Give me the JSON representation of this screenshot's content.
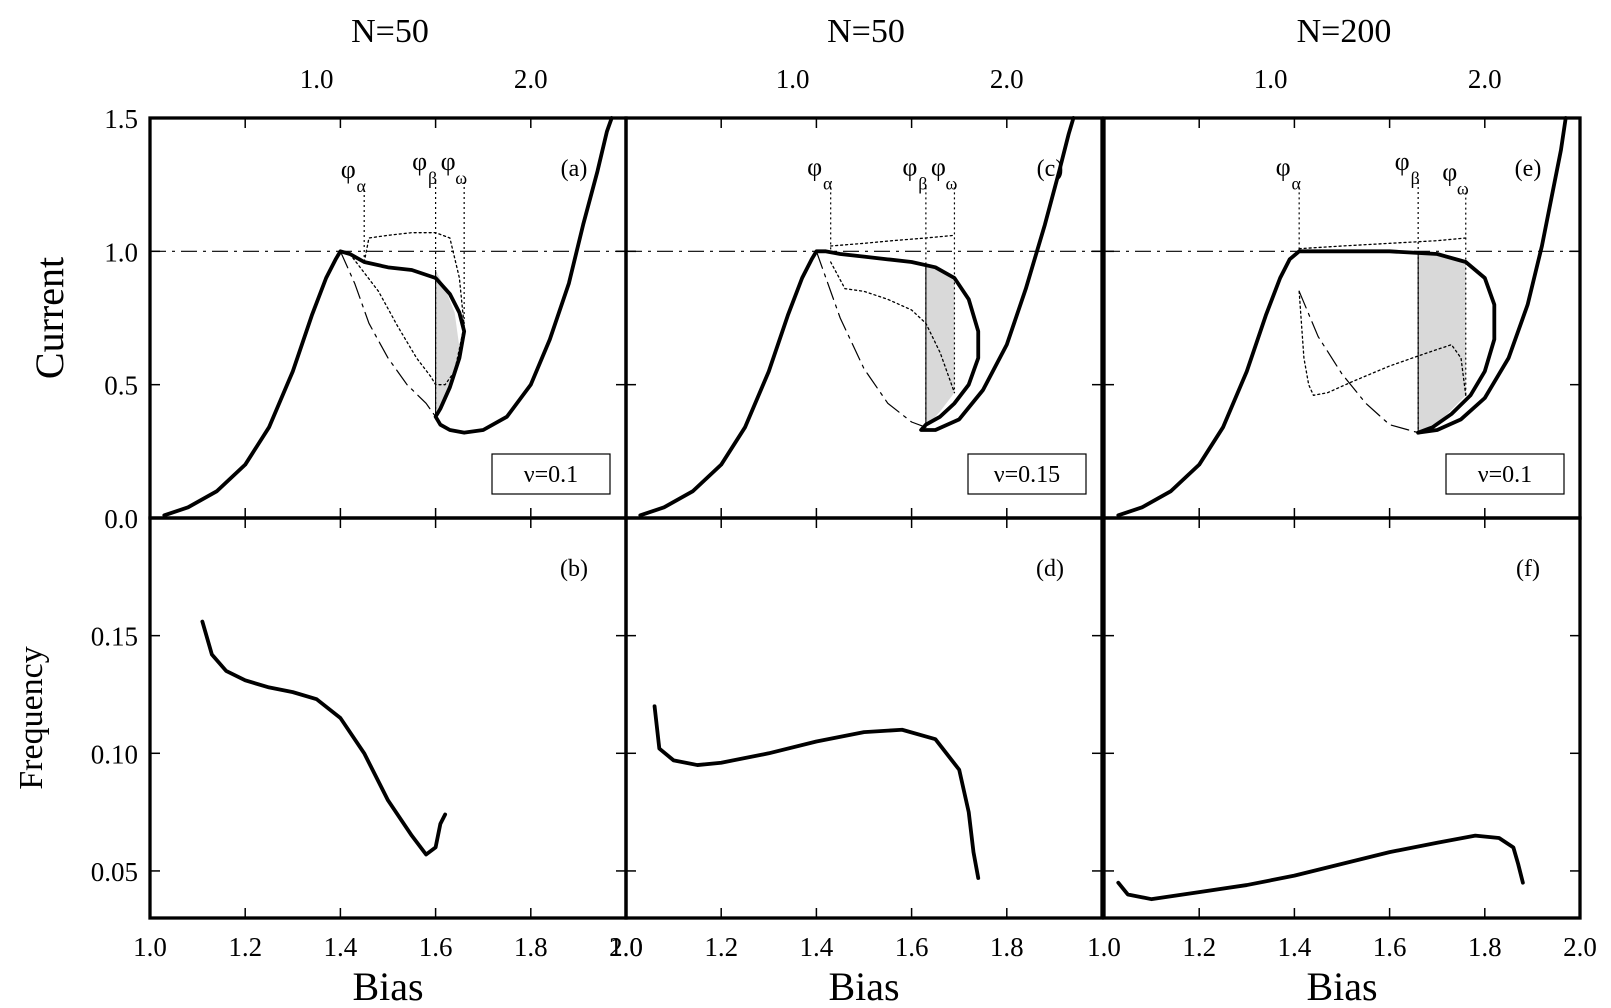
{
  "figure": {
    "top_titles": [
      "N=50",
      "N=50",
      "N=200"
    ],
    "top_tick_labels": [
      "1.0",
      "2.0"
    ]
  },
  "chart_data": [
    {
      "panel": "(a)",
      "type": "line",
      "N": "N=50",
      "label": "(a)",
      "nu_label": "ν=0.1",
      "ylabel": "Current",
      "xlim": [
        1.0,
        2.0
      ],
      "ylim": [
        0.0,
        1.5
      ],
      "xticks": [
        1.0,
        1.2,
        1.4,
        1.6,
        1.8,
        2.0
      ],
      "yticks": [
        0.0,
        0.5,
        1.0,
        1.5
      ],
      "ytick_labels": [
        "0.0",
        "0.5",
        "1.0",
        "1.5"
      ],
      "top_ticks": [
        1.0,
        2.0
      ],
      "markers": [
        {
          "name": "φα",
          "base": "φ",
          "sub": "α",
          "x": 1.45,
          "y_top": 1.23,
          "y_bottom": 0.96
        },
        {
          "name": "φβ",
          "base": "φ",
          "sub": "β",
          "x": 1.6,
          "y_top": 1.26,
          "y_bottom": 0.38
        },
        {
          "name": "φω",
          "base": "φ",
          "sub": "ω",
          "x": 1.66,
          "y_top": 1.26,
          "y_bottom": 0.72
        }
      ],
      "reference_line_y": 1.0,
      "shaded_region": {
        "left": [
          [
            1.6,
            0.38
          ],
          [
            1.6,
            0.93
          ]
        ],
        "upper": [
          [
            1.6,
            0.93
          ],
          [
            1.62,
            0.86
          ],
          [
            1.64,
            0.77
          ]
        ],
        "lower": [
          [
            1.6,
            0.38
          ],
          [
            1.62,
            0.45
          ],
          [
            1.64,
            0.54
          ],
          [
            1.65,
            0.64
          ]
        ]
      },
      "series": [
        {
          "role": "thick-main",
          "style": "thick",
          "x": [
            1.03,
            1.08,
            1.14,
            1.2,
            1.25,
            1.3,
            1.34,
            1.37,
            1.39,
            1.4,
            1.42,
            1.45,
            1.5,
            1.55,
            1.6,
            1.63,
            1.65,
            1.66,
            1.65,
            1.63,
            1.61,
            1.6,
            1.61,
            1.63,
            1.66,
            1.7,
            1.75,
            1.8,
            1.84,
            1.88,
            1.91,
            1.94,
            1.96,
            1.97
          ],
          "y": [
            0.01,
            0.04,
            0.1,
            0.2,
            0.34,
            0.55,
            0.76,
            0.9,
            0.97,
            1.0,
            0.99,
            0.96,
            0.94,
            0.93,
            0.9,
            0.84,
            0.77,
            0.7,
            0.6,
            0.49,
            0.41,
            0.38,
            0.35,
            0.33,
            0.32,
            0.33,
            0.38,
            0.5,
            0.67,
            0.88,
            1.1,
            1.3,
            1.45,
            1.5
          ]
        },
        {
          "role": "dashed-lower",
          "style": "dash-long",
          "x": [
            1.4,
            1.43,
            1.46,
            1.5,
            1.54,
            1.58,
            1.6
          ],
          "y": [
            1.0,
            0.88,
            0.73,
            0.6,
            0.5,
            0.43,
            0.38
          ]
        },
        {
          "role": "dotted-upper",
          "style": "dotted",
          "x": [
            1.45,
            1.46,
            1.5,
            1.55,
            1.6,
            1.63,
            1.65,
            1.66
          ],
          "y": [
            0.96,
            1.05,
            1.06,
            1.07,
            1.07,
            1.05,
            0.9,
            0.72
          ]
        },
        {
          "role": "dotted-lower",
          "style": "dotted",
          "x": [
            1.42,
            1.48,
            1.52,
            1.56,
            1.59,
            1.6,
            1.62,
            1.64,
            1.66
          ],
          "y": [
            0.99,
            0.85,
            0.72,
            0.6,
            0.53,
            0.5,
            0.5,
            0.55,
            0.72
          ]
        }
      ]
    },
    {
      "panel": "(c)",
      "type": "line",
      "N": "N=50",
      "label": "(c)",
      "nu_label": "ν=0.15",
      "xlim": [
        1.0,
        2.0
      ],
      "ylim": [
        0.0,
        1.5
      ],
      "xticks": [
        1.0,
        1.2,
        1.4,
        1.6,
        1.8,
        2.0
      ],
      "yticks": [
        0.0,
        0.5,
        1.0,
        1.5
      ],
      "top_ticks": [
        1.0,
        2.0
      ],
      "markers": [
        {
          "name": "φα",
          "base": "φ",
          "sub": "α",
          "x": 1.43,
          "y_top": 1.24,
          "y_bottom": 1.0
        },
        {
          "name": "φβ",
          "base": "φ",
          "sub": "β",
          "x": 1.63,
          "y_top": 1.24,
          "y_bottom": 0.34
        },
        {
          "name": "φω",
          "base": "φ",
          "sub": "ω",
          "x": 1.69,
          "y_top": 1.24,
          "y_bottom": 0.47
        }
      ],
      "reference_line_y": 1.0,
      "shaded_region": {
        "left": [
          [
            1.63,
            0.34
          ],
          [
            1.63,
            0.95
          ]
        ],
        "upper": [
          [
            1.63,
            0.95
          ],
          [
            1.66,
            0.93
          ],
          [
            1.69,
            0.9
          ]
        ],
        "lower": [
          [
            1.63,
            0.34
          ],
          [
            1.66,
            0.4
          ],
          [
            1.69,
            0.47
          ]
        ]
      },
      "series": [
        {
          "role": "thick-main",
          "style": "thick",
          "x": [
            1.03,
            1.08,
            1.14,
            1.2,
            1.25,
            1.3,
            1.34,
            1.37,
            1.39,
            1.4,
            1.42,
            1.45,
            1.5,
            1.55,
            1.6,
            1.65,
            1.69,
            1.72,
            1.74,
            1.74,
            1.72,
            1.69,
            1.66,
            1.63,
            1.62,
            1.65,
            1.7,
            1.75,
            1.8,
            1.84,
            1.88,
            1.91,
            1.93,
            1.94
          ],
          "y": [
            0.01,
            0.04,
            0.1,
            0.2,
            0.34,
            0.55,
            0.76,
            0.9,
            0.97,
            1.0,
            1.0,
            0.99,
            0.98,
            0.97,
            0.96,
            0.94,
            0.9,
            0.82,
            0.7,
            0.6,
            0.5,
            0.43,
            0.38,
            0.35,
            0.33,
            0.33,
            0.37,
            0.48,
            0.65,
            0.86,
            1.1,
            1.3,
            1.44,
            1.5
          ]
        },
        {
          "role": "dashed-lower",
          "style": "dash-long",
          "x": [
            1.4,
            1.45,
            1.5,
            1.55,
            1.6,
            1.63
          ],
          "y": [
            1.0,
            0.75,
            0.56,
            0.43,
            0.36,
            0.34
          ]
        },
        {
          "role": "dotted-upper",
          "style": "dotted",
          "x": [
            1.43,
            1.5,
            1.56,
            1.63,
            1.69
          ],
          "y": [
            1.02,
            1.03,
            1.04,
            1.05,
            1.06
          ]
        },
        {
          "role": "dotted-lower",
          "style": "dotted",
          "x": [
            1.43,
            1.46,
            1.5,
            1.55,
            1.6,
            1.63,
            1.66,
            1.69
          ],
          "y": [
            0.96,
            0.86,
            0.85,
            0.82,
            0.78,
            0.73,
            0.62,
            0.47
          ]
        }
      ]
    },
    {
      "panel": "(e)",
      "type": "line",
      "N": "N=200",
      "label": "(e)",
      "nu_label": "ν=0.1",
      "xlim": [
        1.0,
        2.0
      ],
      "ylim": [
        0.0,
        1.5
      ],
      "xticks": [
        1.0,
        1.2,
        1.4,
        1.6,
        1.8,
        2.0
      ],
      "yticks": [
        0.0,
        0.5,
        1.0,
        1.5
      ],
      "top_ticks": [
        1.0,
        2.0
      ],
      "markers": [
        {
          "name": "φα",
          "base": "φ",
          "sub": "α",
          "x": 1.41,
          "y_top": 1.24,
          "y_bottom": 1.0
        },
        {
          "name": "φβ",
          "base": "φ",
          "sub": "β",
          "x": 1.66,
          "y_top": 1.26,
          "y_bottom": 0.32
        },
        {
          "name": "φω",
          "base": "φ",
          "sub": "ω",
          "x": 1.76,
          "y_top": 1.22,
          "y_bottom": 0.46
        }
      ],
      "reference_line_y": 1.0,
      "shaded_region": {
        "left": [
          [
            1.66,
            0.32
          ],
          [
            1.66,
            0.99
          ]
        ],
        "upper": [
          [
            1.66,
            0.99
          ],
          [
            1.72,
            0.98
          ],
          [
            1.76,
            0.96
          ]
        ],
        "lower": [
          [
            1.66,
            0.32
          ],
          [
            1.71,
            0.37
          ],
          [
            1.76,
            0.46
          ]
        ]
      },
      "series": [
        {
          "role": "thick-main",
          "style": "thick",
          "x": [
            1.03,
            1.08,
            1.14,
            1.2,
            1.25,
            1.3,
            1.34,
            1.37,
            1.39,
            1.41,
            1.5,
            1.6,
            1.7,
            1.76,
            1.8,
            1.82,
            1.82,
            1.8,
            1.77,
            1.73,
            1.69,
            1.66
          ],
          "y": [
            0.01,
            0.04,
            0.1,
            0.2,
            0.34,
            0.55,
            0.76,
            0.9,
            0.97,
            1.0,
            1.0,
            1.0,
            0.99,
            0.96,
            0.9,
            0.8,
            0.67,
            0.55,
            0.46,
            0.39,
            0.34,
            0.32
          ]
        },
        {
          "role": "thick-right-branch",
          "style": "thick",
          "x": [
            1.66,
            1.7,
            1.75,
            1.8,
            1.85,
            1.89,
            1.92,
            1.94,
            1.96,
            1.97
          ],
          "y": [
            0.32,
            0.33,
            0.37,
            0.45,
            0.6,
            0.8,
            1.02,
            1.2,
            1.38,
            1.5
          ]
        },
        {
          "role": "dashed-lower",
          "style": "dash-long",
          "x": [
            1.41,
            1.45,
            1.5,
            1.55,
            1.6,
            1.66
          ],
          "y": [
            0.85,
            0.68,
            0.54,
            0.43,
            0.35,
            0.32
          ]
        },
        {
          "role": "dotted-upper",
          "style": "dotted",
          "x": [
            1.41,
            1.5,
            1.6,
            1.7,
            1.76
          ],
          "y": [
            1.01,
            1.02,
            1.03,
            1.04,
            1.05
          ]
        },
        {
          "role": "dotted-lower",
          "style": "dotted",
          "x": [
            1.41,
            1.42,
            1.43,
            1.44,
            1.47,
            1.52,
            1.6,
            1.68,
            1.73,
            1.75,
            1.76
          ],
          "y": [
            0.85,
            0.6,
            0.5,
            0.46,
            0.47,
            0.51,
            0.57,
            0.62,
            0.65,
            0.6,
            0.46
          ]
        }
      ]
    },
    {
      "panel": "(b)",
      "type": "line",
      "label": "(b)",
      "ylabel": "Frequency",
      "xlabel": "Bias",
      "xlim": [
        1.0,
        2.0
      ],
      "ylim": [
        0.03,
        0.2
      ],
      "xticks": [
        1.0,
        1.2,
        1.4,
        1.6,
        1.8,
        2.0
      ],
      "xtick_labels": [
        "1.0",
        "1.2",
        "1.4",
        "1.6",
        "1.8",
        "2.0"
      ],
      "yticks": [
        0.05,
        0.1,
        0.15
      ],
      "ytick_labels": [
        "0.05",
        "0.10",
        "0.15"
      ],
      "series": [
        {
          "role": "frequency",
          "style": "thick",
          "x": [
            1.11,
            1.13,
            1.16,
            1.2,
            1.25,
            1.3,
            1.35,
            1.4,
            1.45,
            1.5,
            1.55,
            1.58,
            1.6,
            1.61,
            1.62
          ],
          "y": [
            0.156,
            0.142,
            0.135,
            0.131,
            0.128,
            0.126,
            0.123,
            0.115,
            0.1,
            0.08,
            0.065,
            0.057,
            0.06,
            0.07,
            0.074
          ]
        }
      ]
    },
    {
      "panel": "(d)",
      "type": "line",
      "label": "(d)",
      "xlabel": "Bias",
      "xlim": [
        1.0,
        2.0
      ],
      "ylim": [
        0.03,
        0.2
      ],
      "xticks": [
        1.0,
        1.2,
        1.4,
        1.6,
        1.8,
        2.0
      ],
      "xtick_labels": [
        "1.0",
        "1.2",
        "1.4",
        "1.6",
        "1.8"
      ],
      "yticks": [
        0.05,
        0.1,
        0.15
      ],
      "series": [
        {
          "role": "frequency",
          "style": "thick",
          "x": [
            1.06,
            1.07,
            1.1,
            1.15,
            1.2,
            1.3,
            1.4,
            1.5,
            1.58,
            1.65,
            1.7,
            1.72,
            1.73,
            1.74
          ],
          "y": [
            0.12,
            0.102,
            0.097,
            0.095,
            0.096,
            0.1,
            0.105,
            0.109,
            0.11,
            0.106,
            0.093,
            0.075,
            0.058,
            0.047
          ]
        }
      ]
    },
    {
      "panel": "(f)",
      "type": "line",
      "label": "(f)",
      "xlabel": "Bias",
      "xlim": [
        1.0,
        2.0
      ],
      "ylim": [
        0.03,
        0.2
      ],
      "xticks": [
        1.0,
        1.2,
        1.4,
        1.6,
        1.8,
        2.0
      ],
      "xtick_labels": [
        "1.0",
        "1.2",
        "1.4",
        "1.6",
        "1.8",
        "2.0"
      ],
      "yticks": [
        0.05,
        0.1,
        0.15
      ],
      "series": [
        {
          "role": "frequency",
          "style": "thick",
          "x": [
            1.03,
            1.05,
            1.1,
            1.2,
            1.3,
            1.4,
            1.5,
            1.6,
            1.7,
            1.78,
            1.83,
            1.86,
            1.87,
            1.88
          ],
          "y": [
            0.045,
            0.04,
            0.038,
            0.041,
            0.044,
            0.048,
            0.053,
            0.058,
            0.062,
            0.065,
            0.064,
            0.06,
            0.053,
            0.045
          ]
        }
      ]
    }
  ]
}
